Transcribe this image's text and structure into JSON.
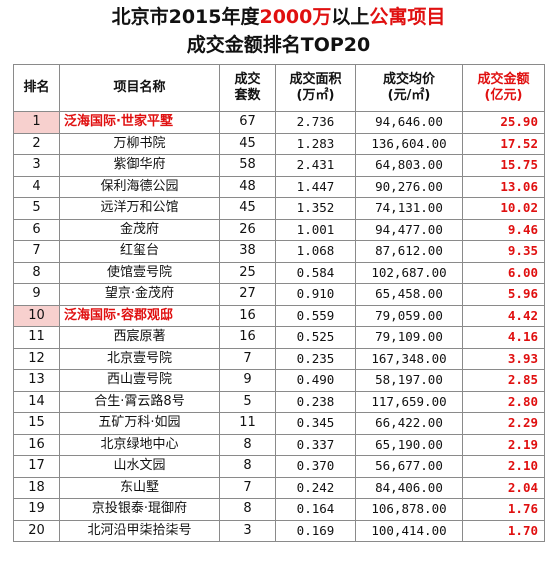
{
  "title": {
    "line1_prefix": "北京市2015年度",
    "line1_highlight1": "2000万",
    "line1_middle": "以上",
    "line1_highlight2": "公寓项目",
    "line2": "成交金额排名TOP20"
  },
  "headers": {
    "rank": "排名",
    "name": "项目名称",
    "sets_line1": "成交",
    "sets_line2": "套数",
    "area_line1": "成交面积",
    "area_line2": "(万㎡)",
    "price_line1": "成交均价",
    "price_line2": "(元/㎡)",
    "amount_line1": "成交金额",
    "amount_line2": "(亿元)"
  },
  "rows": [
    {
      "rank": "1",
      "name": "泛海国际·世家平墅",
      "sets": "67",
      "area": "2.736",
      "price": "94,646.00",
      "amount": "25.90",
      "highlight": true
    },
    {
      "rank": "2",
      "name": "万柳书院",
      "sets": "45",
      "area": "1.283",
      "price": "136,604.00",
      "amount": "17.52",
      "highlight": false
    },
    {
      "rank": "3",
      "name": "紫御华府",
      "sets": "58",
      "area": "2.431",
      "price": "64,803.00",
      "amount": "15.75",
      "highlight": false
    },
    {
      "rank": "4",
      "name": "保利海德公园",
      "sets": "48",
      "area": "1.447",
      "price": "90,276.00",
      "amount": "13.06",
      "highlight": false
    },
    {
      "rank": "5",
      "name": "远洋万和公馆",
      "sets": "45",
      "area": "1.352",
      "price": "74,131.00",
      "amount": "10.02",
      "highlight": false
    },
    {
      "rank": "6",
      "name": "金茂府",
      "sets": "26",
      "area": "1.001",
      "price": "94,477.00",
      "amount": "9.46",
      "highlight": false
    },
    {
      "rank": "7",
      "name": "红玺台",
      "sets": "38",
      "area": "1.068",
      "price": "87,612.00",
      "amount": "9.35",
      "highlight": false
    },
    {
      "rank": "8",
      "name": "使馆壹号院",
      "sets": "25",
      "area": "0.584",
      "price": "102,687.00",
      "amount": "6.00",
      "highlight": false
    },
    {
      "rank": "9",
      "name": "望京·金茂府",
      "sets": "27",
      "area": "0.910",
      "price": "65,458.00",
      "amount": "5.96",
      "highlight": false
    },
    {
      "rank": "10",
      "name": "泛海国际·容郡观邸",
      "sets": "16",
      "area": "0.559",
      "price": "79,059.00",
      "amount": "4.42",
      "highlight": true
    },
    {
      "rank": "11",
      "name": "西宸原著",
      "sets": "16",
      "area": "0.525",
      "price": "79,109.00",
      "amount": "4.16",
      "highlight": false
    },
    {
      "rank": "12",
      "name": "北京壹号院",
      "sets": "7",
      "area": "0.235",
      "price": "167,348.00",
      "amount": "3.93",
      "highlight": false
    },
    {
      "rank": "13",
      "name": "西山壹号院",
      "sets": "9",
      "area": "0.490",
      "price": "58,197.00",
      "amount": "2.85",
      "highlight": false
    },
    {
      "rank": "14",
      "name": "合生·霄云路8号",
      "sets": "5",
      "area": "0.238",
      "price": "117,659.00",
      "amount": "2.80",
      "highlight": false
    },
    {
      "rank": "15",
      "name": "五矿万科·如园",
      "sets": "11",
      "area": "0.345",
      "price": "66,422.00",
      "amount": "2.29",
      "highlight": false
    },
    {
      "rank": "16",
      "name": "北京绿地中心",
      "sets": "8",
      "area": "0.337",
      "price": "65,190.00",
      "amount": "2.19",
      "highlight": false
    },
    {
      "rank": "17",
      "name": "山水文园",
      "sets": "8",
      "area": "0.370",
      "price": "56,677.00",
      "amount": "2.10",
      "highlight": false
    },
    {
      "rank": "18",
      "name": "东山墅",
      "sets": "7",
      "area": "0.242",
      "price": "84,406.00",
      "amount": "2.04",
      "highlight": false
    },
    {
      "rank": "19",
      "name": "京投银泰·琨御府",
      "sets": "8",
      "area": "0.164",
      "price": "106,878.00",
      "amount": "1.76",
      "highlight": false
    },
    {
      "rank": "20",
      "name": "北河沿甲柒拾柒号",
      "sets": "3",
      "area": "0.169",
      "price": "100,414.00",
      "amount": "1.70",
      "highlight": false
    }
  ]
}
